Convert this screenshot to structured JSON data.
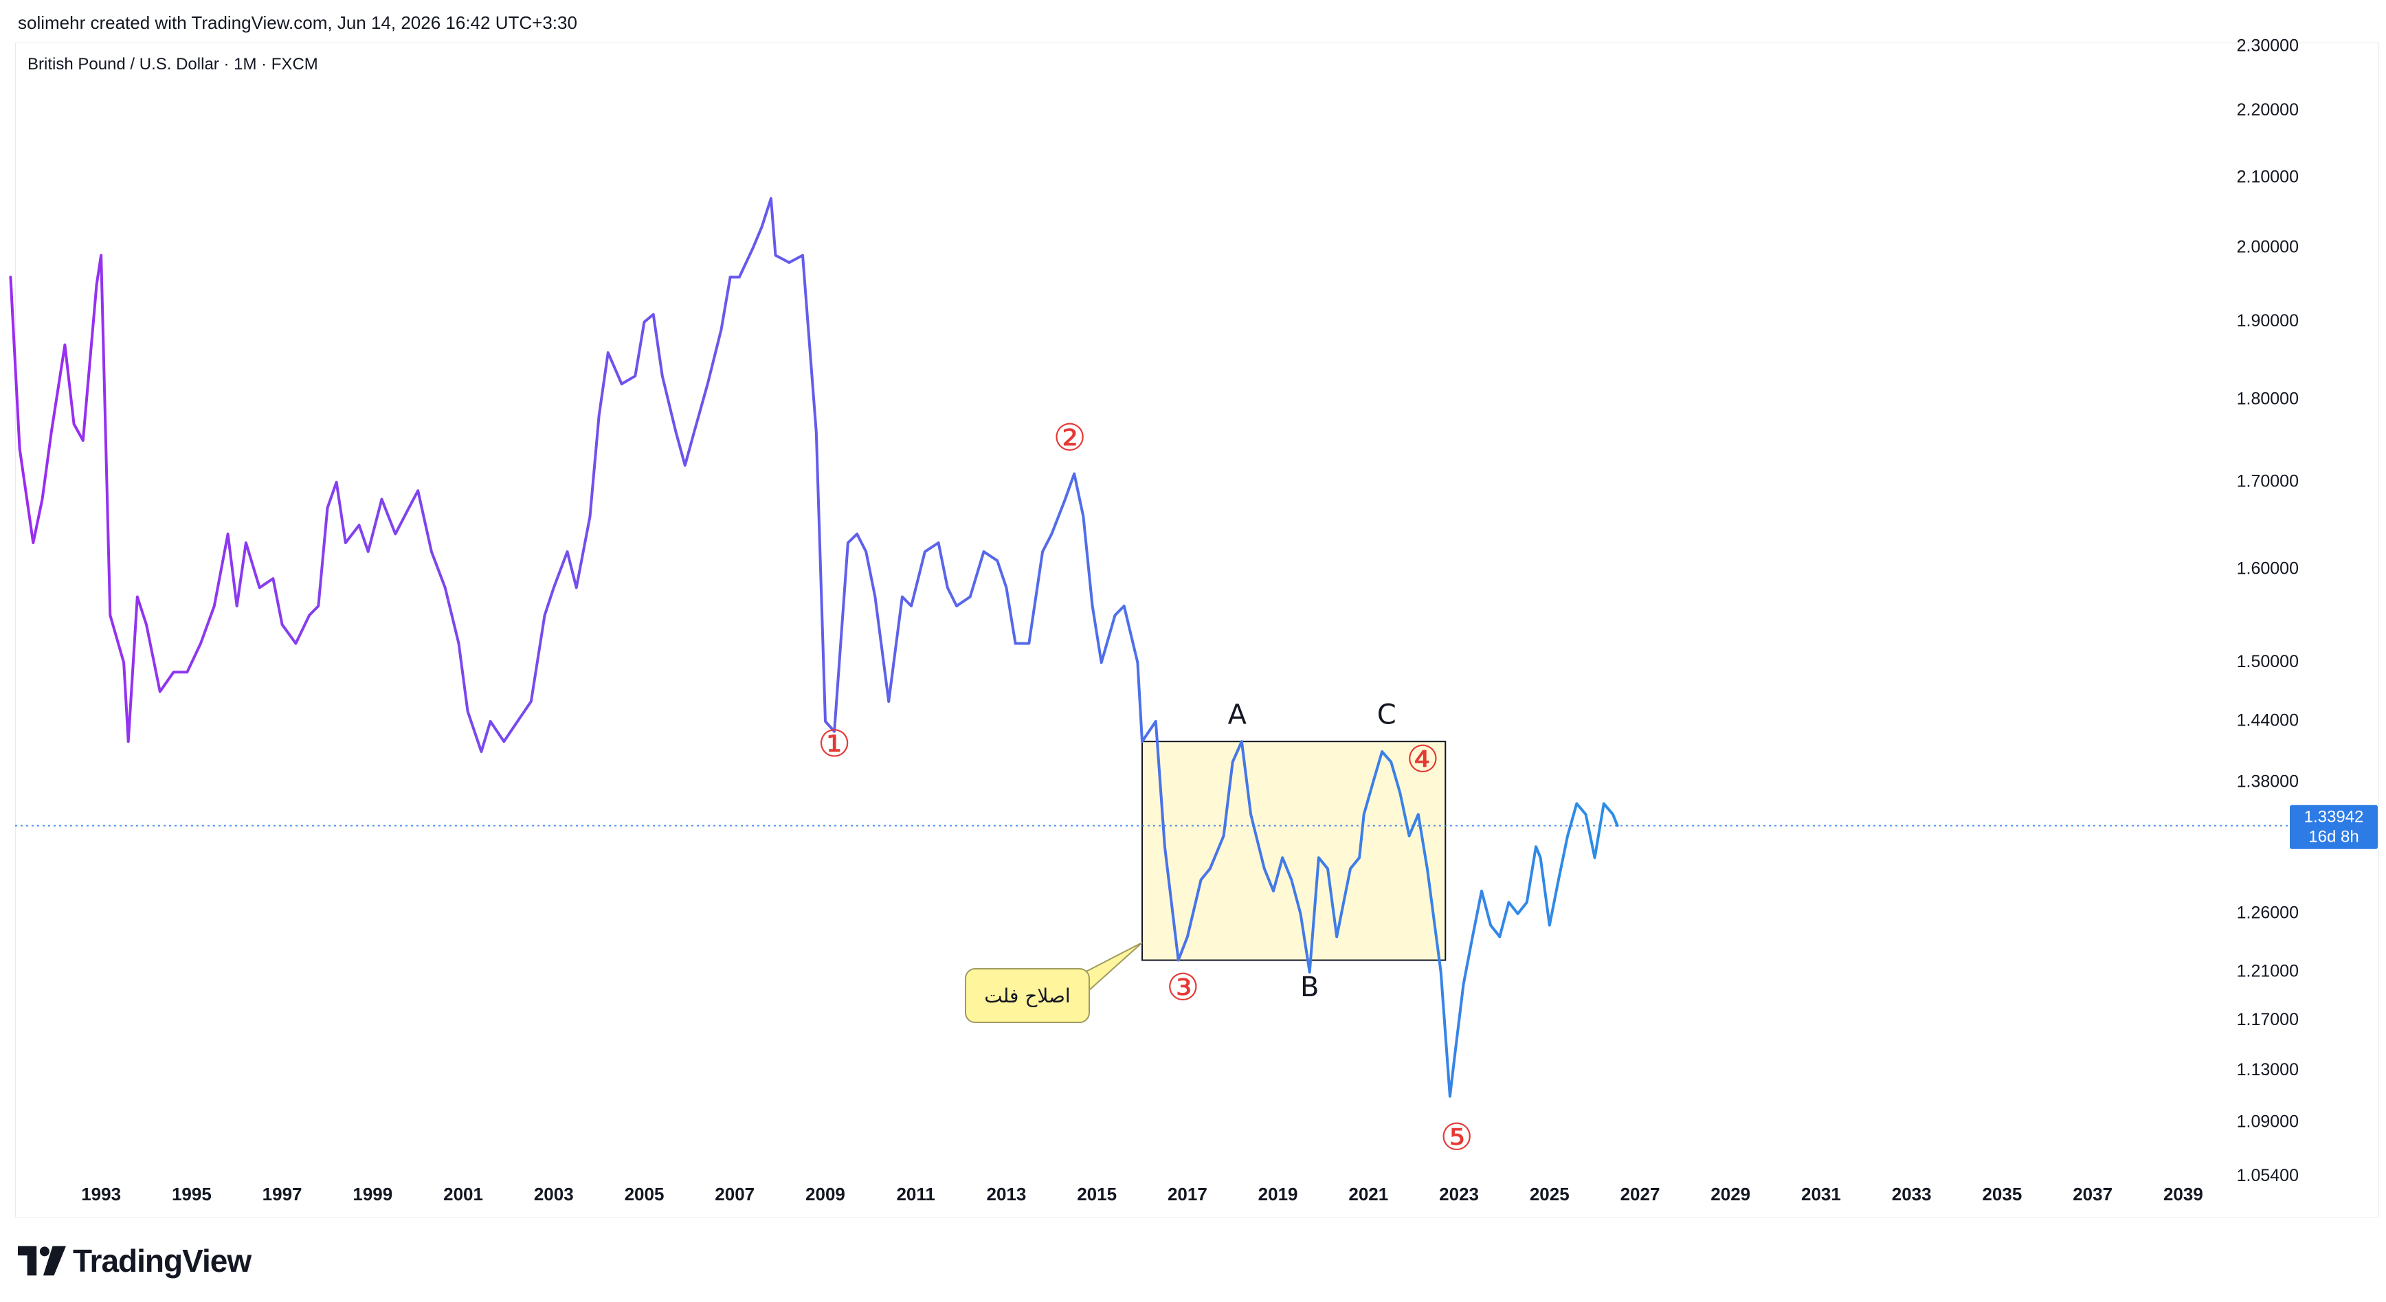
{
  "header": {
    "credit": "solimehr created with TradingView.com, Jun 14, 2026 16:42 UTC+3:30"
  },
  "symbol": {
    "title": "British Pound / U.S. Dollar · 1M · FXCM"
  },
  "footer": {
    "logo_text": "TradingView"
  },
  "price_marker": {
    "value": "1.33942",
    "countdown": "16d 8h",
    "color": "#2d7be5"
  },
  "colors": {
    "line_start": "#9b2cf0",
    "line_end": "#2b8ee6",
    "box_fill": "#fff9d6",
    "label_red": "#e53935",
    "callout_fill": "#fff59d"
  },
  "chart_data": {
    "type": "line",
    "title": "",
    "scale": "log",
    "xlim": [
      1991.1,
      2040.9
    ],
    "ylim": [
      1.0546,
      2.3
    ],
    "y_ticks": [
      2.3,
      2.2,
      2.1,
      2.0,
      1.9,
      1.8,
      1.7,
      1.6,
      1.5,
      1.44,
      1.38,
      1.26,
      1.21,
      1.17,
      1.13,
      1.09,
      1.05
    ],
    "y_tick_labels": [
      "2.30000",
      "2.20000",
      "2.10000",
      "2.00000",
      "1.90000",
      "1.80000",
      "1.70000",
      "1.60000",
      "1.50000",
      "1.44000",
      "1.38000",
      "1.26000",
      "1.21000",
      "1.17000",
      "1.13000",
      "1.09000",
      "1.05400"
    ],
    "x_ticks": [
      "1993",
      "1995",
      "1997",
      "1999",
      "2001",
      "2003",
      "2005",
      "2007",
      "2009",
      "2011",
      "2013",
      "2015",
      "2017",
      "2019",
      "2021",
      "2023",
      "2025",
      "2027",
      "2029",
      "2031",
      "2033",
      "2035",
      "2037",
      "2039"
    ],
    "series": [
      {
        "name": "",
        "points": [
          [
            1991.0,
            1.96
          ],
          [
            1991.2,
            1.74
          ],
          [
            1991.5,
            1.63
          ],
          [
            1991.7,
            1.68
          ],
          [
            1991.9,
            1.76
          ],
          [
            1992.2,
            1.87
          ],
          [
            1992.4,
            1.77
          ],
          [
            1992.6,
            1.75
          ],
          [
            1992.9,
            1.95
          ],
          [
            1993.0,
            1.99
          ],
          [
            1993.2,
            1.55
          ],
          [
            1993.5,
            1.5
          ],
          [
            1993.6,
            1.42
          ],
          [
            1993.8,
            1.57
          ],
          [
            1994.0,
            1.54
          ],
          [
            1994.3,
            1.47
          ],
          [
            1994.6,
            1.49
          ],
          [
            1994.9,
            1.49
          ],
          [
            1995.2,
            1.52
          ],
          [
            1995.5,
            1.56
          ],
          [
            1995.8,
            1.64
          ],
          [
            1996.0,
            1.56
          ],
          [
            1996.2,
            1.63
          ],
          [
            1996.5,
            1.58
          ],
          [
            1996.8,
            1.59
          ],
          [
            1997.0,
            1.54
          ],
          [
            1997.3,
            1.52
          ],
          [
            1997.6,
            1.55
          ],
          [
            1997.8,
            1.56
          ],
          [
            1998.0,
            1.67
          ],
          [
            1998.2,
            1.7
          ],
          [
            1998.4,
            1.63
          ],
          [
            1998.7,
            1.65
          ],
          [
            1998.9,
            1.62
          ],
          [
            1999.2,
            1.68
          ],
          [
            1999.5,
            1.64
          ],
          [
            1999.8,
            1.67
          ],
          [
            2000.0,
            1.69
          ],
          [
            2000.3,
            1.62
          ],
          [
            2000.6,
            1.58
          ],
          [
            2000.9,
            1.52
          ],
          [
            2001.1,
            1.45
          ],
          [
            2001.4,
            1.41
          ],
          [
            2001.6,
            1.44
          ],
          [
            2001.9,
            1.42
          ],
          [
            2002.2,
            1.44
          ],
          [
            2002.5,
            1.46
          ],
          [
            2002.8,
            1.55
          ],
          [
            2003.0,
            1.58
          ],
          [
            2003.3,
            1.62
          ],
          [
            2003.5,
            1.58
          ],
          [
            2003.8,
            1.66
          ],
          [
            2004.0,
            1.78
          ],
          [
            2004.2,
            1.86
          ],
          [
            2004.5,
            1.82
          ],
          [
            2004.8,
            1.83
          ],
          [
            2005.0,
            1.9
          ],
          [
            2005.2,
            1.91
          ],
          [
            2005.4,
            1.83
          ],
          [
            2005.7,
            1.76
          ],
          [
            2005.9,
            1.72
          ],
          [
            2006.1,
            1.76
          ],
          [
            2006.4,
            1.82
          ],
          [
            2006.7,
            1.89
          ],
          [
            2006.9,
            1.96
          ],
          [
            2007.1,
            1.96
          ],
          [
            2007.4,
            2.0
          ],
          [
            2007.6,
            2.03
          ],
          [
            2007.8,
            2.07
          ],
          [
            2007.9,
            1.99
          ],
          [
            2008.2,
            1.98
          ],
          [
            2008.5,
            1.99
          ],
          [
            2008.8,
            1.76
          ],
          [
            2009.0,
            1.44
          ],
          [
            2009.2,
            1.43
          ],
          [
            2009.5,
            1.63
          ],
          [
            2009.7,
            1.64
          ],
          [
            2009.9,
            1.62
          ],
          [
            2010.1,
            1.57
          ],
          [
            2010.4,
            1.46
          ],
          [
            2010.7,
            1.57
          ],
          [
            2010.9,
            1.56
          ],
          [
            2011.2,
            1.62
          ],
          [
            2011.5,
            1.63
          ],
          [
            2011.7,
            1.58
          ],
          [
            2011.9,
            1.56
          ],
          [
            2012.2,
            1.57
          ],
          [
            2012.5,
            1.62
          ],
          [
            2012.8,
            1.61
          ],
          [
            2013.0,
            1.58
          ],
          [
            2013.2,
            1.52
          ],
          [
            2013.5,
            1.52
          ],
          [
            2013.8,
            1.62
          ],
          [
            2014.0,
            1.64
          ],
          [
            2014.3,
            1.68
          ],
          [
            2014.5,
            1.71
          ],
          [
            2014.7,
            1.66
          ],
          [
            2014.9,
            1.56
          ],
          [
            2015.1,
            1.5
          ],
          [
            2015.4,
            1.55
          ],
          [
            2015.6,
            1.56
          ],
          [
            2015.9,
            1.5
          ],
          [
            2016.0,
            1.42
          ],
          [
            2016.3,
            1.44
          ],
          [
            2016.5,
            1.32
          ],
          [
            2016.8,
            1.22
          ],
          [
            2017.0,
            1.24
          ],
          [
            2017.3,
            1.29
          ],
          [
            2017.5,
            1.3
          ],
          [
            2017.8,
            1.33
          ],
          [
            2018.0,
            1.4
          ],
          [
            2018.2,
            1.42
          ],
          [
            2018.4,
            1.35
          ],
          [
            2018.7,
            1.3
          ],
          [
            2018.9,
            1.28
          ],
          [
            2019.1,
            1.31
          ],
          [
            2019.3,
            1.29
          ],
          [
            2019.5,
            1.26
          ],
          [
            2019.7,
            1.21
          ],
          [
            2019.9,
            1.31
          ],
          [
            2020.1,
            1.3
          ],
          [
            2020.3,
            1.24
          ],
          [
            2020.6,
            1.3
          ],
          [
            2020.8,
            1.31
          ],
          [
            2020.9,
            1.35
          ],
          [
            2021.1,
            1.38
          ],
          [
            2021.3,
            1.41
          ],
          [
            2021.5,
            1.4
          ],
          [
            2021.7,
            1.37
          ],
          [
            2021.9,
            1.33
          ],
          [
            2022.1,
            1.35
          ],
          [
            2022.3,
            1.3
          ],
          [
            2022.6,
            1.21
          ],
          [
            2022.8,
            1.11
          ],
          [
            2022.9,
            1.14
          ],
          [
            2023.1,
            1.2
          ],
          [
            2023.3,
            1.24
          ],
          [
            2023.5,
            1.28
          ],
          [
            2023.7,
            1.25
          ],
          [
            2023.9,
            1.24
          ],
          [
            2024.1,
            1.27
          ],
          [
            2024.3,
            1.26
          ],
          [
            2024.5,
            1.27
          ],
          [
            2024.7,
            1.32
          ],
          [
            2024.8,
            1.31
          ],
          [
            2025.0,
            1.25
          ],
          [
            2025.2,
            1.29
          ],
          [
            2025.4,
            1.33
          ],
          [
            2025.6,
            1.36
          ],
          [
            2025.8,
            1.35
          ],
          [
            2026.0,
            1.31
          ],
          [
            2026.2,
            1.36
          ],
          [
            2026.4,
            1.35
          ],
          [
            2026.5,
            1.33942
          ]
        ]
      }
    ],
    "box": {
      "x": [
        2016.0,
        2022.7
      ],
      "y": [
        1.22,
        1.42
      ]
    },
    "annotations": [
      {
        "text": "①",
        "x": 2009.2,
        "y": 1.415,
        "color": "#e53935"
      },
      {
        "text": "②",
        "x": 2014.4,
        "y": 1.75,
        "color": "#e53935"
      },
      {
        "text": "③",
        "x": 2016.9,
        "y": 1.195,
        "color": "#e53935"
      },
      {
        "text": "④",
        "x": 2022.2,
        "y": 1.4,
        "color": "#e53935"
      },
      {
        "text": "⑤",
        "x": 2022.95,
        "y": 1.077,
        "color": "#e53935"
      },
      {
        "text": "A",
        "x": 2018.1,
        "y": 1.445,
        "color": "#131722"
      },
      {
        "text": "B",
        "x": 2019.7,
        "y": 1.196,
        "color": "#131722"
      },
      {
        "text": "C",
        "x": 2021.4,
        "y": 1.445,
        "color": "#131722"
      }
    ],
    "callout": {
      "text": "اصلاح فلت",
      "target_x": 2016.0,
      "target_y": 1.235
    }
  }
}
